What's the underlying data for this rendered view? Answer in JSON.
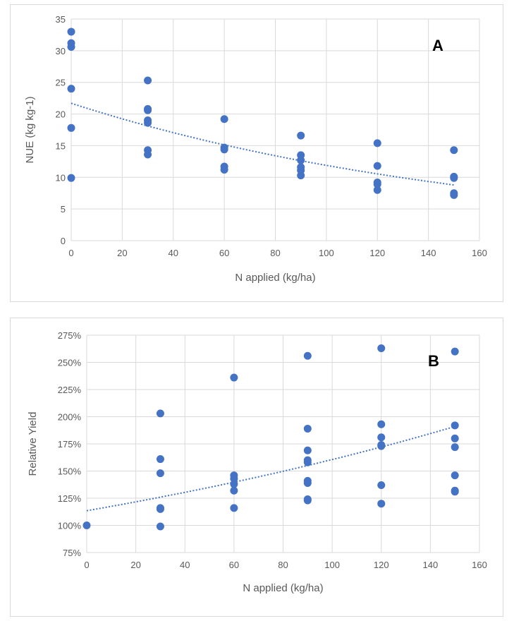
{
  "colors": {
    "series": "#4472c4",
    "grid": "#d9d9d9",
    "text": "#595959"
  },
  "chart_data": [
    {
      "id": "A",
      "type": "scatter",
      "panel_label": "A",
      "xlabel": "N applied (kg/ha)",
      "ylabel": "NUE (kg kg-1)",
      "xlim": [
        0,
        160
      ],
      "ylim": [
        0,
        35
      ],
      "xticks": [
        0,
        20,
        40,
        60,
        80,
        100,
        120,
        140,
        160
      ],
      "yticks": [
        0,
        5,
        10,
        15,
        20,
        25,
        30,
        35
      ],
      "x_tick_labels": [
        "0",
        "20",
        "40",
        "60",
        "80",
        "100",
        "120",
        "140",
        "160"
      ],
      "y_tick_labels": [
        "0",
        "5",
        "10",
        "15",
        "20",
        "25",
        "30",
        "35"
      ],
      "grid": true,
      "points": [
        [
          0,
          33.0
        ],
        [
          0,
          31.2
        ],
        [
          0,
          30.6
        ],
        [
          0,
          24.0
        ],
        [
          0,
          17.8
        ],
        [
          0,
          9.9
        ],
        [
          30,
          25.3
        ],
        [
          30,
          20.8
        ],
        [
          30,
          20.6
        ],
        [
          30,
          19.0
        ],
        [
          30,
          18.6
        ],
        [
          30,
          14.3
        ],
        [
          30,
          13.6
        ],
        [
          60,
          19.2
        ],
        [
          60,
          14.7
        ],
        [
          60,
          14.4
        ],
        [
          60,
          11.7
        ],
        [
          60,
          11.2
        ],
        [
          90,
          16.6
        ],
        [
          90,
          13.5
        ],
        [
          90,
          12.7
        ],
        [
          90,
          11.6
        ],
        [
          90,
          11.1
        ],
        [
          90,
          10.3
        ],
        [
          120,
          15.4
        ],
        [
          120,
          11.8
        ],
        [
          120,
          9.2
        ],
        [
          120,
          8.9
        ],
        [
          120,
          8.0
        ],
        [
          150,
          14.3
        ],
        [
          150,
          10.1
        ],
        [
          150,
          9.9
        ],
        [
          150,
          7.5
        ],
        [
          150,
          7.2
        ]
      ],
      "trendline": {
        "type": "exponential",
        "x": [
          0,
          150
        ],
        "y": [
          21.7,
          8.8
        ]
      }
    },
    {
      "id": "B",
      "type": "scatter",
      "panel_label": "B",
      "xlabel": "N applied (kg/ha)",
      "ylabel": "Relative Yield",
      "xlim": [
        0,
        160
      ],
      "ylim": [
        75,
        275
      ],
      "xticks": [
        0,
        20,
        40,
        60,
        80,
        100,
        120,
        140,
        160
      ],
      "yticks": [
        75,
        100,
        125,
        150,
        175,
        200,
        225,
        250,
        275
      ],
      "x_tick_labels": [
        "0",
        "20",
        "40",
        "60",
        "80",
        "100",
        "120",
        "140",
        "160"
      ],
      "y_tick_labels": [
        "75%",
        "100%",
        "125%",
        "150%",
        "175%",
        "200%",
        "225%",
        "250%",
        "275%"
      ],
      "grid": true,
      "points": [
        [
          0,
          100
        ],
        [
          30,
          203
        ],
        [
          30,
          161
        ],
        [
          30,
          148
        ],
        [
          30,
          116
        ],
        [
          30,
          115
        ],
        [
          30,
          99
        ],
        [
          60,
          236
        ],
        [
          60,
          146
        ],
        [
          60,
          143
        ],
        [
          60,
          138
        ],
        [
          60,
          132
        ],
        [
          60,
          116
        ],
        [
          90,
          256
        ],
        [
          90,
          189
        ],
        [
          90,
          169
        ],
        [
          90,
          160
        ],
        [
          90,
          158
        ],
        [
          90,
          141
        ],
        [
          90,
          139
        ],
        [
          90,
          124
        ],
        [
          90,
          123
        ],
        [
          120,
          263
        ],
        [
          120,
          193
        ],
        [
          120,
          181
        ],
        [
          120,
          174
        ],
        [
          120,
          173
        ],
        [
          120,
          137
        ],
        [
          120,
          120
        ],
        [
          150,
          260
        ],
        [
          150,
          192
        ],
        [
          150,
          180
        ],
        [
          150,
          172
        ],
        [
          150,
          146
        ],
        [
          150,
          132
        ],
        [
          150,
          131
        ]
      ],
      "trendline": {
        "type": "exponential",
        "x": [
          0,
          150
        ],
        "y": [
          113.5,
          191.0
        ]
      }
    }
  ]
}
